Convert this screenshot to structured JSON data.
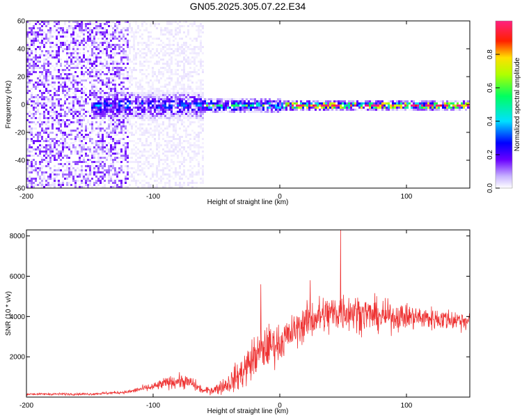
{
  "title": "GN05.2025.305.07.22.E34",
  "chart_data": [
    {
      "type": "heatmap",
      "name": "spectrogram",
      "xlabel": "Height of straight line (km)",
      "ylabel": "Frequency (Hz)",
      "xlim": [
        -200,
        150
      ],
      "ylim": [
        -60,
        60
      ],
      "xticks": [
        "-200",
        "-100",
        "0",
        "100"
      ],
      "xtick_values": [
        -200,
        -100,
        0,
        100
      ],
      "yticks": [
        "60",
        "40",
        "20",
        "0",
        "-20",
        "-40",
        "-60"
      ],
      "ytick_values": [
        60,
        40,
        20,
        0,
        -20,
        -40,
        -60
      ],
      "colorbar": {
        "label": "Normalized spectral amplitude",
        "range": [
          0,
          1
        ],
        "ticks": [
          "0.0",
          "0.2",
          "0.4",
          "0.6",
          "0.8"
        ],
        "tick_values": [
          0.0,
          0.2,
          0.4,
          0.6,
          0.8
        ],
        "colormap": [
          "#ffffff",
          "#c8b4ff",
          "#6a00ff",
          "#0000ff",
          "#00e0ff",
          "#00ff60",
          "#b0ff00",
          "#ffe000",
          "#ff2000",
          "#ff2080"
        ]
      },
      "regions": [
        {
          "x_range": [
            -200,
            -120
          ],
          "description": "broadband noise",
          "freq_spread": 60,
          "amplitude": 0.15
        },
        {
          "x_range": [
            -120,
            -60
          ],
          "description": "sparse noise",
          "freq_spread": 60,
          "amplitude": 0.06
        },
        {
          "x_range": [
            -150,
            -60
          ],
          "description": "signal onset",
          "freq_spread": 10,
          "amplitude": 0.3
        },
        {
          "x_range": [
            -60,
            0
          ],
          "description": "narrow signal",
          "freq_spread": 5,
          "amplitude": 0.45
        },
        {
          "x_range": [
            0,
            150
          ],
          "description": "strong narrow signal",
          "freq_spread": 3,
          "amplitude": 0.9
        }
      ]
    },
    {
      "type": "line",
      "name": "snr",
      "xlabel": "Height of straight line (km)",
      "ylabel": "SNR (10 * v/v)",
      "xlim": [
        -200,
        150
      ],
      "ylim": [
        0,
        8300
      ],
      "xticks": [
        "-200",
        "-100",
        "0",
        "100"
      ],
      "xtick_values": [
        -200,
        -100,
        0,
        100
      ],
      "yticks": [
        "8000",
        "6000",
        "4000",
        "2000"
      ],
      "ytick_values": [
        8000,
        6000,
        4000,
        2000
      ],
      "color": "#ee3333",
      "envelope": {
        "x": [
          -200,
          -150,
          -120,
          -110,
          -100,
          -90,
          -80,
          -70,
          -60,
          -50,
          -40,
          -30,
          -20,
          -10,
          0,
          10,
          20,
          30,
          40,
          50,
          60,
          80,
          100,
          120,
          150
        ],
        "mean": [
          150,
          150,
          250,
          400,
          500,
          700,
          800,
          700,
          300,
          400,
          700,
          1200,
          2000,
          2500,
          2700,
          3200,
          3700,
          4000,
          4100,
          4300,
          4200,
          4000,
          4000,
          3900,
          3800
        ],
        "spread": [
          80,
          80,
          120,
          200,
          300,
          400,
          500,
          500,
          200,
          400,
          700,
          1200,
          1500,
          1500,
          1300,
          1200,
          1300,
          1400,
          1500,
          1400,
          1300,
          1100,
          900,
          800,
          700
        ]
      },
      "peaks": [
        {
          "x": 48,
          "y": 8300
        },
        {
          "x": -15,
          "y": 5600
        },
        {
          "x": 24,
          "y": 5800
        }
      ]
    }
  ]
}
